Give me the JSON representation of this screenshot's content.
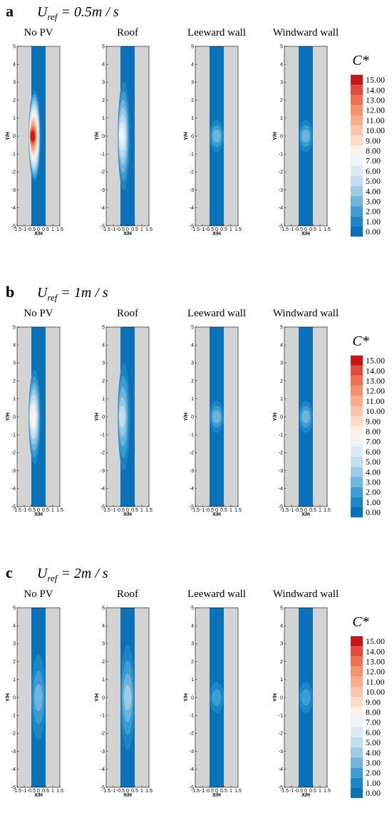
{
  "chart_data": {
    "type": "heatmap",
    "panels": [
      {
        "label": "a",
        "uref_main": "U",
        "uref_sub": "ref",
        "uref_value": " = 0.5m / s",
        "subplots": [
          {
            "title": "No PV",
            "peak_value": 15,
            "hot_zone_y": [
              -1.8,
              1.8
            ]
          },
          {
            "title": "Roof",
            "peak_value": 7,
            "hot_zone_y": [
              -2.2,
              2.2
            ]
          },
          {
            "title": "Leeward wall",
            "peak_value": 3,
            "hot_zone_y": [
              -0.6,
              0.6
            ]
          },
          {
            "title": "Windward wall",
            "peak_value": 3,
            "hot_zone_y": [
              -0.6,
              0.6
            ]
          }
        ]
      },
      {
        "label": "b",
        "uref_main": "U",
        "uref_sub": "ref",
        "uref_value": " = 1m / s",
        "subplots": [
          {
            "title": "No PV",
            "peak_value": 8,
            "hot_zone_y": [
              -1.9,
              1.9
            ]
          },
          {
            "title": "Roof",
            "peak_value": 5,
            "hot_zone_y": [
              -2.2,
              2.2
            ]
          },
          {
            "title": "Leeward wall",
            "peak_value": 3,
            "hot_zone_y": [
              -0.6,
              0.6
            ]
          },
          {
            "title": "Windward wall",
            "peak_value": 3,
            "hot_zone_y": [
              -0.6,
              0.6
            ]
          }
        ]
      },
      {
        "label": "c",
        "uref_main": "U",
        "uref_sub": "ref",
        "uref_value": " = 2m / s",
        "subplots": [
          {
            "title": "No PV",
            "peak_value": 3,
            "hot_zone_y": [
              -1.8,
              1.8
            ]
          },
          {
            "title": "Roof",
            "peak_value": 4,
            "hot_zone_y": [
              -2.2,
              2.2
            ]
          },
          {
            "title": "Leeward wall",
            "peak_value": 2,
            "hot_zone_y": [
              -0.6,
              0.6
            ]
          },
          {
            "title": "Windward wall",
            "peak_value": 2,
            "hot_zone_y": [
              -0.6,
              0.6
            ]
          }
        ]
      }
    ],
    "xlabel": "X/H",
    "ylabel": "Y/H",
    "xlim": [
      -1.5,
      1.5
    ],
    "ylim": [
      -5,
      5
    ],
    "xticks": [
      -1.5,
      -1,
      -0.5,
      0,
      0.5,
      1,
      1.5
    ],
    "yticks": [
      -5,
      -4,
      -3,
      -2,
      -1,
      0,
      1,
      2,
      3,
      4,
      5
    ],
    "street_x": [
      -0.5,
      0.5
    ],
    "legend": {
      "title": "C*",
      "levels": [
        "15.00",
        "14.00",
        "13.00",
        "12.00",
        "11.00",
        "10.00",
        "9.00",
        "8.00",
        "7.00",
        "6.00",
        "5.00",
        "4.00",
        "3.00",
        "2.00",
        "1.00",
        "0.00"
      ],
      "colors": [
        "#c8161d",
        "#e04a3f",
        "#ef6f55",
        "#f6916f",
        "#f9ac8c",
        "#fbc5ab",
        "#fcdcc9",
        "#fdf1e8",
        "#eef4f9",
        "#dbe8f3",
        "#c3dcee",
        "#9fcbe6",
        "#6fb5dc",
        "#3f9dd1",
        "#1b87c6",
        "#0b72b9"
      ],
      "position": "right"
    },
    "background_color": "#d3d3d3"
  }
}
